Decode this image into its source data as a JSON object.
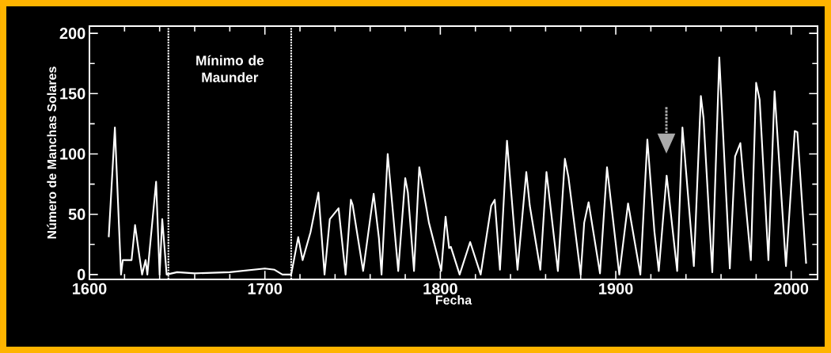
{
  "chart_data": {
    "type": "line",
    "xlabel": "Fecha",
    "ylabel": "Número de Manchas Solares",
    "x": [
      1611,
      1611,
      1614.5,
      1618,
      1619,
      1624,
      1626,
      1628,
      1630,
      1632,
      1633,
      1638,
      1640,
      1641.5,
      1644,
      1650,
      1660,
      1680,
      1700,
      1705.5,
      1710,
      1715,
      1719,
      1721.5,
      1726,
      1730.5,
      1734,
      1737,
      1742,
      1746,
      1749,
      1750,
      1756,
      1760,
      1762,
      1765,
      1766.5,
      1770,
      1776,
      1780,
      1781.5,
      1785,
      1788,
      1793.5,
      1800.5,
      1803,
      1805,
      1806,
      1811,
      1817,
      1823,
      1829,
      1831,
      1834,
      1838,
      1844,
      1849,
      1851,
      1857,
      1860.5,
      1867,
      1871,
      1873,
      1880,
      1882,
      1884.5,
      1891,
      1895,
      1902,
      1907,
      1914,
      1918,
      1922,
      1924.5,
      1929,
      1935,
      1938,
      1944.5,
      1948.5,
      1950,
      1955,
      1959,
      1965,
      1968,
      1971,
      1973,
      1977,
      1980,
      1982,
      1987,
      1990.5,
      1997,
      2002,
      2003.5,
      2008.5
    ],
    "series": [
      {
        "color": "#ffffff",
        "values": [
          31,
          31,
          122,
          0,
          12,
          12,
          41,
          20,
          0,
          12,
          0,
          77,
          0,
          46,
          0,
          2,
          1,
          2,
          5,
          4,
          0,
          0,
          31,
          12,
          35,
          68,
          0,
          46,
          55,
          0,
          62,
          58,
          3,
          46,
          67,
          30,
          0,
          100,
          3,
          80,
          68,
          3,
          89,
          43,
          3,
          48,
          22,
          23,
          0,
          27,
          0,
          57,
          62,
          4,
          111,
          4,
          85,
          57,
          4,
          85,
          3,
          96,
          81,
          0,
          43,
          60,
          1,
          89,
          0,
          59,
          0,
          112,
          36,
          3,
          82,
          3,
          122,
          7,
          148,
          130,
          2,
          180,
          5,
          98,
          109,
          75,
          12,
          159,
          145,
          12,
          152,
          7,
          119,
          118,
          9
        ]
      }
    ],
    "xlim": [
      1600,
      2015
    ],
    "ylim": [
      -4,
      206
    ],
    "xticks": [
      1600,
      1700,
      1800,
      1900,
      2000
    ],
    "yticks": [
      0,
      50,
      100,
      150,
      200
    ],
    "ref_lines": [
      {
        "axis": "x",
        "value": 1645,
        "color": "#ffffff",
        "line_style": "dotted"
      },
      {
        "axis": "x",
        "value": 1715,
        "color": "#ffffff",
        "line_style": "dotted"
      }
    ],
    "annotations": [
      "Mínimo de Maunder"
    ],
    "grid": false,
    "marker": "none",
    "line_style": "solid"
  }
}
